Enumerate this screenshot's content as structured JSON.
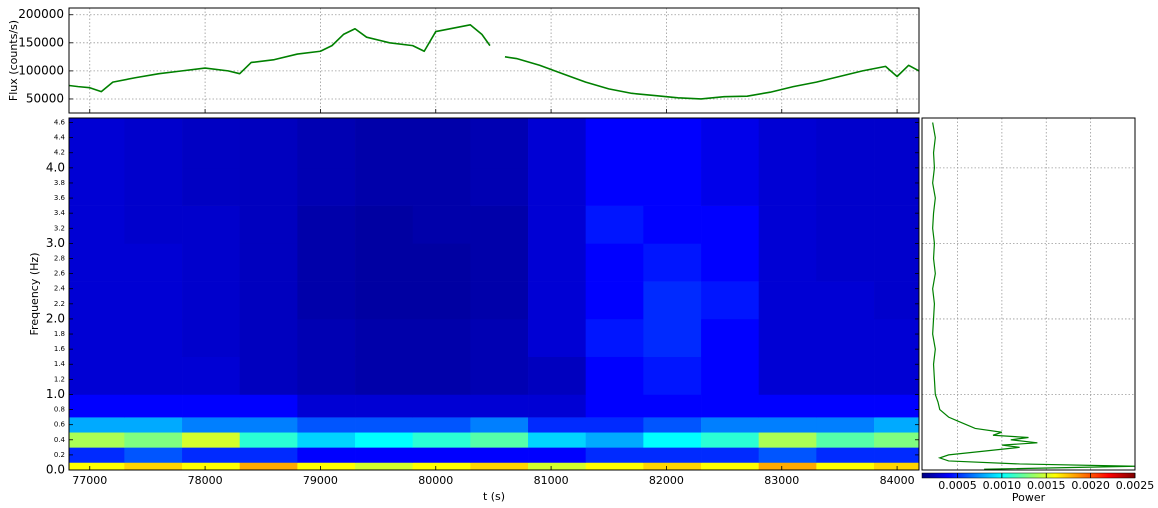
{
  "chart_data": [
    {
      "type": "line",
      "orientation": "vertical",
      "ylabel": "Flux (counts/s)",
      "color": "#008000",
      "grid": true,
      "xlim": [
        76820,
        84190
      ],
      "xticks": [
        77000,
        78000,
        79000,
        80000,
        81000,
        82000,
        83000,
        84000
      ],
      "ylim": [
        25000,
        212000
      ],
      "yticks": [
        50000,
        100000,
        150000,
        200000
      ],
      "x": [
        76820,
        76900,
        77000,
        77100,
        77200,
        77400,
        77600,
        77800,
        78000,
        78200,
        78300,
        78400,
        78600,
        78800,
        79000,
        79100,
        79200,
        79300,
        79400,
        79600,
        79800,
        79900,
        80000,
        80200,
        80300,
        80400,
        80470,
        80500,
        80550,
        80600,
        80700,
        80900,
        81100,
        81300,
        81500,
        81700,
        81900,
        82100,
        82300,
        82500,
        82700,
        82900,
        83100,
        83300,
        83500,
        83700,
        83900,
        84000,
        84100,
        84190
      ],
      "values": [
        74000,
        72000,
        70000,
        63000,
        80000,
        88000,
        95000,
        100000,
        105000,
        100000,
        95000,
        115000,
        120000,
        130000,
        135000,
        145000,
        165000,
        175000,
        160000,
        150000,
        145000,
        135000,
        170000,
        178000,
        182000,
        165000,
        145000,
        null,
        null,
        125000,
        122000,
        110000,
        95000,
        80000,
        68000,
        60000,
        56000,
        52000,
        50000,
        54000,
        55000,
        62000,
        72000,
        80000,
        90000,
        100000,
        108000,
        90000,
        110000,
        100000
      ]
    },
    {
      "type": "heatmap",
      "xlabel": "t (s)",
      "ylabel": "Frequency (Hz)",
      "xlim": [
        76820,
        84190
      ],
      "xticks": [
        77000,
        78000,
        79000,
        80000,
        81000,
        82000,
        83000,
        84000
      ],
      "ylim": [
        0,
        4.66
      ],
      "yticks": [
        {
          "value": 0,
          "label": "0.0"
        },
        0.2,
        0.4,
        0.6,
        0.8,
        {
          "value": 1,
          "label": "1.0"
        },
        1.2,
        1.4,
        1.6,
        1.8,
        {
          "value": 2,
          "label": "2.0"
        },
        2.2,
        2.4,
        2.6,
        2.8,
        {
          "value": 3,
          "label": "3.0"
        },
        3.2,
        3.4,
        3.6,
        3.8,
        {
          "value": 4,
          "label": "4.0"
        },
        4.2,
        4.4,
        4.6
      ],
      "x_edges": [
        76820,
        77300,
        77800,
        78300,
        78800,
        79300,
        79800,
        80300,
        80800,
        81300,
        81800,
        82300,
        82800,
        83300,
        83800,
        84190
      ],
      "y_edges": [
        0,
        0.1,
        0.3,
        0.5,
        0.7,
        1.0,
        1.5,
        2.0,
        2.5,
        3.0,
        3.5,
        4.0,
        4.66
      ],
      "z": [
        [
          0.0016,
          0.0017,
          0.0016,
          0.0018,
          0.0016,
          0.0015,
          0.0016,
          0.0017,
          0.0015,
          0.0016,
          0.0017,
          0.0016,
          0.0018,
          0.0016,
          0.0017
        ],
        [
          0.0005,
          0.0006,
          0.0005,
          0.0005,
          0.0004,
          0.0004,
          0.0004,
          0.0004,
          0.0004,
          0.0005,
          0.0005,
          0.0005,
          0.0006,
          0.0005,
          0.0005
        ],
        [
          0.0014,
          0.0013,
          0.0015,
          0.0011,
          0.0009,
          0.001,
          0.0011,
          0.0012,
          0.0009,
          0.0008,
          0.001,
          0.0011,
          0.0014,
          0.0012,
          0.0013
        ],
        [
          0.0008,
          0.0008,
          0.0007,
          0.0007,
          0.0006,
          0.0006,
          0.0006,
          0.0007,
          0.0005,
          0.0005,
          0.0006,
          0.0007,
          0.0007,
          0.0007,
          0.0008
        ],
        [
          0.0004,
          0.0004,
          0.0004,
          0.0004,
          0.0003,
          0.0003,
          0.0003,
          0.0003,
          0.0003,
          0.0004,
          0.0004,
          0.0004,
          0.0004,
          0.0004,
          0.0004
        ],
        [
          0.0003,
          0.0003,
          0.0003,
          0.00025,
          0.00022,
          0.0002,
          0.0002,
          0.00022,
          0.00025,
          0.0004,
          0.00045,
          0.0004,
          0.0003,
          0.0003,
          0.0003
        ],
        [
          0.0003,
          0.0003,
          0.00028,
          0.00025,
          0.00022,
          0.0002,
          0.0002,
          0.00022,
          0.0003,
          0.00045,
          0.0005,
          0.0004,
          0.0003,
          0.0003,
          0.0003
        ],
        [
          0.0003,
          0.0003,
          0.00028,
          0.00025,
          0.0002,
          0.00018,
          0.00018,
          0.0002,
          0.0003,
          0.0004,
          0.0005,
          0.00045,
          0.0003,
          0.0003,
          0.00028
        ],
        [
          0.0003,
          0.0003,
          0.00028,
          0.00025,
          0.0002,
          0.00018,
          0.00018,
          0.0002,
          0.0003,
          0.0004,
          0.00045,
          0.0004,
          0.0003,
          0.00028,
          0.00028
        ],
        [
          0.0003,
          0.00028,
          0.00028,
          0.00025,
          0.0002,
          0.00018,
          0.0002,
          0.0002,
          0.0003,
          0.00045,
          0.0004,
          0.0004,
          0.0003,
          0.00028,
          0.00028
        ],
        [
          0.0003,
          0.00028,
          0.00026,
          0.00025,
          0.00022,
          0.0002,
          0.0002,
          0.00022,
          0.0003,
          0.0004,
          0.0004,
          0.00035,
          0.0003,
          0.00028,
          0.00028
        ],
        [
          0.0003,
          0.00028,
          0.00026,
          0.00025,
          0.00022,
          0.0002,
          0.0002,
          0.00022,
          0.0003,
          0.0004,
          0.0004,
          0.00035,
          0.0003,
          0.00028,
          0.00028
        ]
      ],
      "colorbar": {
        "label": "Power",
        "lim": [
          0.0001,
          0.0025
        ],
        "ticks": [
          0.0005,
          {
            "value": 0.001,
            "label": "0.0010"
          },
          0.0015,
          {
            "value": 0.002,
            "label": "0.0020"
          },
          0.0025
        ]
      }
    },
    {
      "type": "line",
      "orientation": "horizontal",
      "color": "#008000",
      "grid": true,
      "xlim": [
        0,
        4.66
      ],
      "xticks": [
        1,
        2,
        3,
        4
      ],
      "ylim": [
        0.0001,
        0.0025
      ],
      "yticks": [
        0.0005,
        0.001,
        0.0015,
        0.002
      ],
      "x": [
        0.01,
        0.05,
        0.08,
        0.12,
        0.16,
        0.2,
        0.25,
        0.3,
        0.33,
        0.36,
        0.4,
        0.43,
        0.46,
        0.5,
        0.55,
        0.6,
        0.65,
        0.7,
        0.8,
        0.9,
        1.0,
        1.2,
        1.4,
        1.6,
        1.8,
        2.0,
        2.2,
        2.4,
        2.6,
        2.8,
        3.0,
        3.2,
        3.4,
        3.6,
        3.8,
        4.0,
        4.2,
        4.4,
        4.6
      ],
      "values": [
        0.0008,
        0.0025,
        0.0012,
        0.0004,
        0.0003,
        0.0004,
        0.0008,
        0.0012,
        0.001,
        0.0014,
        0.0011,
        0.0013,
        0.0009,
        0.001,
        0.0007,
        0.0006,
        0.0005,
        0.0004,
        0.0003,
        0.00028,
        0.00025,
        0.00024,
        0.00023,
        0.00025,
        0.00022,
        0.00023,
        0.00024,
        0.00022,
        0.00025,
        0.00023,
        0.00024,
        0.00022,
        0.00023,
        0.00025,
        0.00022,
        0.00024,
        0.00023,
        0.00025,
        0.00022
      ]
    }
  ]
}
